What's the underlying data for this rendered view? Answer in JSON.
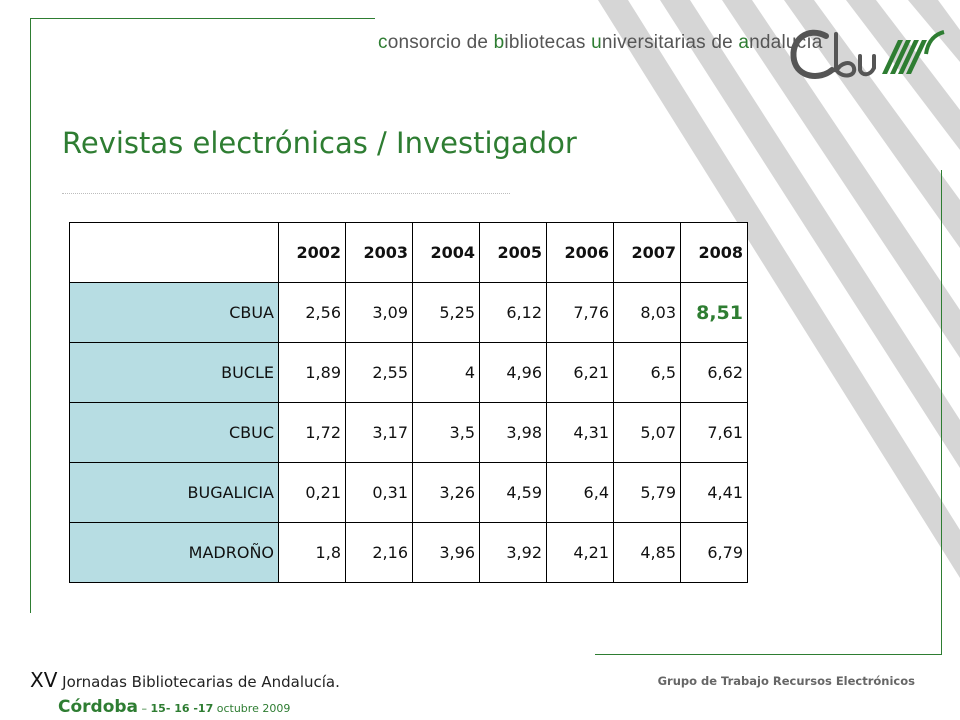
{
  "header": {
    "text_parts": [
      {
        "text": "c",
        "accent": true
      },
      {
        "text": "onsorcio de ",
        "accent": false
      },
      {
        "text": "b",
        "accent": true
      },
      {
        "text": "ibliotecas ",
        "accent": false
      },
      {
        "text": "u",
        "accent": true
      },
      {
        "text": "niversitarias de ",
        "accent": false
      },
      {
        "text": "a",
        "accent": true
      },
      {
        "text": "ndalucía",
        "accent": false
      }
    ],
    "logo_text": "CbuA"
  },
  "title": "Revistas electrónicas / Investigador",
  "table": {
    "years": [
      "2002",
      "2003",
      "2004",
      "2005",
      "2006",
      "2007",
      "2008"
    ],
    "rows": [
      {
        "label": "CBUA",
        "values": [
          "2,56",
          "3,09",
          "5,25",
          "6,12",
          "7,76",
          "8,03",
          "8,51"
        ],
        "highlight_last": true
      },
      {
        "label": "BUCLE",
        "values": [
          "1,89",
          "2,55",
          "4",
          "4,96",
          "6,21",
          "6,5",
          "6,62"
        ],
        "highlight_last": false
      },
      {
        "label": "CBUC",
        "values": [
          "1,72",
          "3,17",
          "3,5",
          "3,98",
          "4,31",
          "5,07",
          "7,61"
        ],
        "highlight_last": false
      },
      {
        "label": "BUGALICIA",
        "values": [
          "0,21",
          "0,31",
          "3,26",
          "4,59",
          "6,4",
          "5,79",
          "4,41"
        ],
        "highlight_last": false
      },
      {
        "label": "MADROÑO",
        "values": [
          "1,8",
          "2,16",
          "3,96",
          "3,92",
          "4,21",
          "4,85",
          "6,79"
        ],
        "highlight_last": false
      }
    ]
  },
  "footer": {
    "xv": "XV",
    "event": "Jornadas Bibliotecarias de Andalucía.",
    "city": "Córdoba",
    "dates_sep": " – ",
    "dates": "15- 16 -17",
    "month": " octubre 2009",
    "group": "Grupo de Trabajo Recursos Electrónicos"
  },
  "colors": {
    "accent_green": "#2e7d32",
    "row_header_bg": "#b7dde3",
    "stripe_gray": "#d4d4d4"
  }
}
